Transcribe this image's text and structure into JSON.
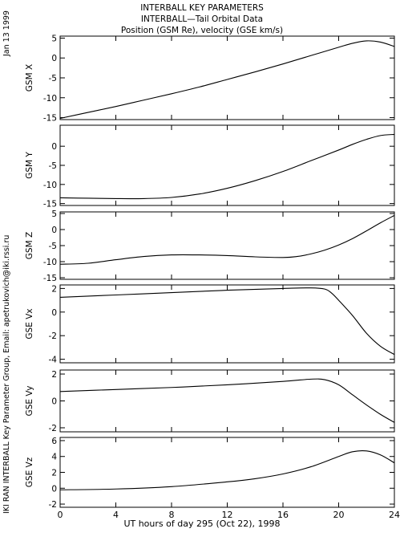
{
  "header": {
    "line1": "INTERBALL KEY PARAMETERS",
    "line2": "INTERBALL—Tail Orbital Data",
    "line3": "Position (GSM Re), velocity (GSE km/s)"
  },
  "date_stamp": "Jan 13 1999",
  "credit": "IKI RAN INTERBALL Key Parameter Group, Email: apetrukovich@iki.rssi.ru",
  "colors": {
    "line": "#000000",
    "background": "#ffffff"
  },
  "chart_data": [
    {
      "type": "line",
      "ylabel": "GSM X",
      "ylim": [
        -15.5,
        5.5
      ],
      "yticks": [
        5,
        0,
        -5,
        -10,
        -15
      ],
      "x": [
        0,
        2,
        4,
        6,
        8,
        10,
        12,
        14,
        16,
        18,
        20,
        21,
        22,
        23,
        24
      ],
      "y": [
        -15.2,
        -13.7,
        -12.2,
        -10.6,
        -9.0,
        -7.3,
        -5.4,
        -3.5,
        -1.5,
        0.6,
        2.7,
        3.7,
        4.3,
        4.0,
        2.9
      ]
    },
    {
      "type": "line",
      "ylabel": "GSM Y",
      "ylim": [
        -15.5,
        5.5
      ],
      "yticks": [
        0,
        -5,
        -10,
        -15
      ],
      "x": [
        0,
        2,
        4,
        6,
        8,
        10,
        12,
        14,
        16,
        18,
        20,
        21,
        22,
        23,
        24
      ],
      "y": [
        -13.5,
        -13.6,
        -13.7,
        -13.7,
        -13.4,
        -12.5,
        -11.0,
        -9.0,
        -6.6,
        -3.8,
        -1.0,
        0.5,
        1.8,
        2.8,
        3.1
      ]
    },
    {
      "type": "line",
      "ylabel": "GSM Z",
      "ylim": [
        -15.5,
        5.5
      ],
      "yticks": [
        5,
        0,
        -5,
        -10,
        -15
      ],
      "x": [
        0,
        2,
        4,
        6,
        8,
        10,
        12,
        14,
        16,
        17,
        18,
        19,
        20,
        21,
        22,
        23,
        24
      ],
      "y": [
        -10.8,
        -10.5,
        -9.4,
        -8.4,
        -7.9,
        -7.9,
        -8.1,
        -8.5,
        -8.7,
        -8.4,
        -7.6,
        -6.4,
        -4.8,
        -2.8,
        -0.4,
        2.1,
        4.4
      ]
    },
    {
      "type": "line",
      "ylabel": "GSE Vx",
      "ylim": [
        -4.3,
        2.3
      ],
      "yticks": [
        2,
        0,
        -2,
        -4
      ],
      "x": [
        0,
        4,
        8,
        12,
        16,
        18,
        19,
        19.5,
        20,
        21,
        22,
        23,
        24
      ],
      "y": [
        1.25,
        1.45,
        1.65,
        1.85,
        2.0,
        2.05,
        1.95,
        1.6,
        1.0,
        -0.3,
        -1.8,
        -2.9,
        -3.6
      ]
    },
    {
      "type": "line",
      "ylabel": "GSE Vy",
      "ylim": [
        -2.3,
        2.3
      ],
      "yticks": [
        2,
        0,
        -2
      ],
      "x": [
        0,
        4,
        8,
        12,
        16,
        18,
        19,
        20,
        21,
        22,
        23,
        24
      ],
      "y": [
        0.7,
        0.85,
        1.0,
        1.2,
        1.45,
        1.62,
        1.58,
        1.2,
        0.45,
        -0.3,
        -1.0,
        -1.6
      ]
    },
    {
      "type": "line",
      "ylabel": "GSE Vz",
      "ylim": [
        -2.4,
        6.4
      ],
      "yticks": [
        6,
        4,
        2,
        0,
        -2
      ],
      "x": [
        0,
        4,
        8,
        12,
        14,
        16,
        18,
        20,
        21,
        22,
        23,
        24
      ],
      "y": [
        -0.2,
        -0.1,
        0.2,
        0.8,
        1.2,
        1.8,
        2.7,
        4.0,
        4.6,
        4.7,
        4.2,
        3.2
      ]
    }
  ],
  "x_axis": {
    "label": "UT hours of day 295 (Oct 22), 1998",
    "ticks": [
      "0",
      "4",
      "8",
      "12",
      "16",
      "20",
      "24"
    ],
    "tick_values": [
      0,
      4,
      8,
      12,
      16,
      20,
      24
    ],
    "xlim": [
      0,
      24
    ]
  }
}
